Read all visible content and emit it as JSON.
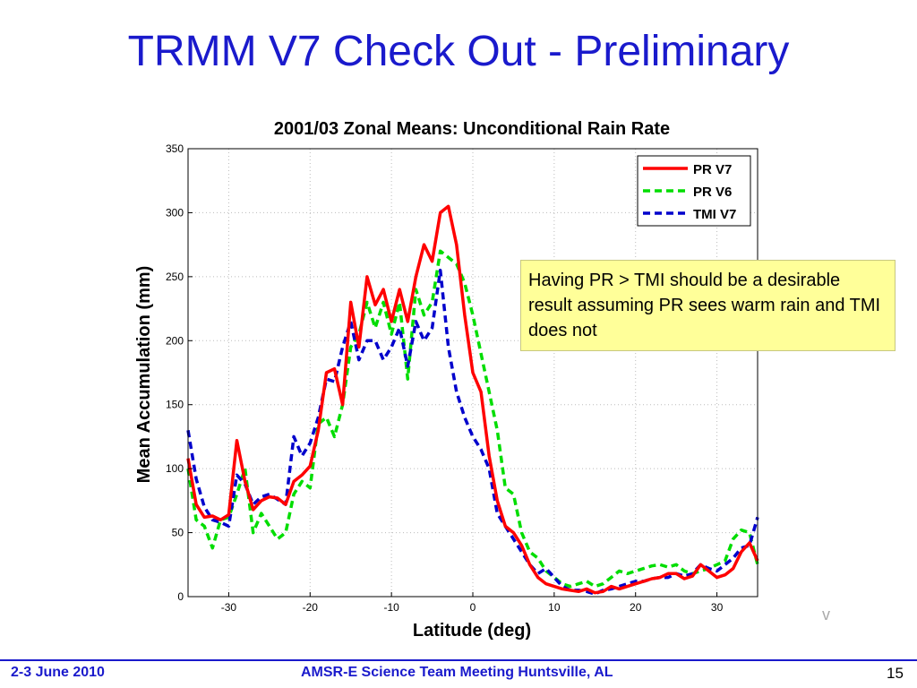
{
  "slide": {
    "title": "TRMM V7 Check Out - Preliminary",
    "callout": "Having PR > TMI should be a desirable result assuming PR sees warm rain and TMI does not",
    "footer_left": "2-3 June 2010",
    "footer_center": "AMSR-E Science Team Meeting  Huntsville, AL",
    "page_number": "15",
    "stray_mark": "v"
  },
  "colors": {
    "title": "#1a1acc",
    "callout_bg": "#ffff99",
    "pr_v7": "#ff0000",
    "pr_v6": "#00dd00",
    "tmi_v7": "#0000cc"
  },
  "chart_data": {
    "type": "line",
    "title": "2001/03 Zonal Means: Unconditional Rain Rate",
    "xlabel": "Latitude (deg)",
    "ylabel": "Mean Accumulation (mm)",
    "xlim": [
      -35,
      35
    ],
    "ylim": [
      0,
      350
    ],
    "xticks": [
      -30,
      -20,
      -10,
      0,
      10,
      20,
      30
    ],
    "yticks": [
      0,
      50,
      100,
      150,
      200,
      250,
      300,
      350
    ],
    "grid": true,
    "legend_position": "top-right",
    "x": [
      -35,
      -34,
      -33,
      -32,
      -31,
      -30,
      -29,
      -28,
      -27,
      -26,
      -25,
      -24,
      -23,
      -22,
      -21,
      -20,
      -19,
      -18,
      -17,
      -16,
      -15,
      -14,
      -13,
      -12,
      -11,
      -10,
      -9,
      -8,
      -7,
      -6,
      -5,
      -4,
      -3,
      -2,
      -1,
      0,
      1,
      2,
      3,
      4,
      5,
      6,
      7,
      8,
      9,
      10,
      11,
      12,
      13,
      14,
      15,
      16,
      17,
      18,
      19,
      20,
      21,
      22,
      23,
      24,
      25,
      26,
      27,
      28,
      29,
      30,
      31,
      32,
      33,
      34,
      35
    ],
    "series": [
      {
        "name": "PR V7",
        "color": "#ff0000",
        "style": "solid",
        "values": [
          108,
          72,
          62,
          63,
          60,
          64,
          122,
          90,
          68,
          75,
          78,
          77,
          72,
          90,
          95,
          102,
          130,
          175,
          178,
          150,
          230,
          195,
          250,
          228,
          240,
          215,
          240,
          215,
          250,
          275,
          262,
          300,
          305,
          275,
          220,
          175,
          160,
          110,
          75,
          55,
          50,
          40,
          25,
          15,
          10,
          8,
          6,
          5,
          4,
          6,
          3,
          4,
          8,
          6,
          8,
          10,
          12,
          14,
          15,
          18,
          18,
          14,
          16,
          25,
          20,
          15,
          17,
          22,
          35,
          42,
          28
        ]
      },
      {
        "name": "PR V6",
        "color": "#00dd00",
        "style": "dashed",
        "values": [
          100,
          60,
          55,
          38,
          60,
          62,
          80,
          100,
          50,
          65,
          55,
          45,
          50,
          80,
          90,
          85,
          135,
          140,
          125,
          150,
          195,
          205,
          230,
          210,
          230,
          205,
          230,
          170,
          240,
          220,
          230,
          270,
          265,
          260,
          245,
          220,
          190,
          160,
          130,
          85,
          80,
          50,
          35,
          30,
          20,
          15,
          10,
          8,
          10,
          12,
          8,
          10,
          15,
          20,
          18,
          20,
          22,
          24,
          25,
          23,
          25,
          20,
          18,
          20,
          22,
          25,
          28,
          45,
          52,
          50,
          25
        ]
      },
      {
        "name": "TMI V7",
        "color": "#0000cc",
        "style": "dashed",
        "values": [
          130,
          92,
          70,
          60,
          58,
          55,
          95,
          88,
          72,
          78,
          80,
          76,
          72,
          125,
          110,
          120,
          140,
          170,
          168,
          195,
          215,
          185,
          200,
          200,
          185,
          195,
          210,
          180,
          215,
          200,
          210,
          255,
          195,
          160,
          140,
          125,
          115,
          100,
          65,
          55,
          45,
          35,
          25,
          18,
          22,
          15,
          8,
          5,
          5,
          4,
          2,
          5,
          6,
          8,
          10,
          12,
          12,
          14,
          15,
          15,
          18,
          16,
          18,
          25,
          22,
          20,
          25,
          30,
          38,
          40,
          62
        ]
      }
    ]
  }
}
